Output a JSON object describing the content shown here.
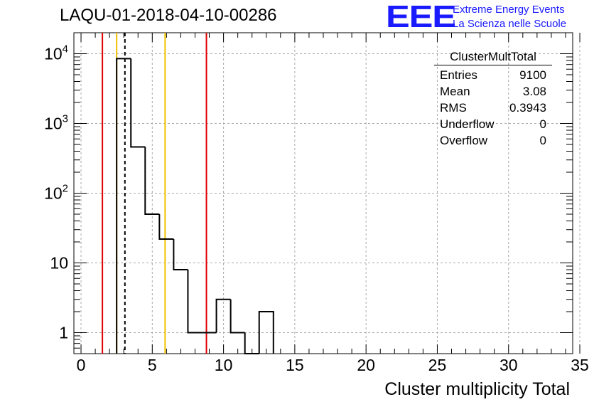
{
  "header": {
    "title": "LAQU-01-2018-04-10-00286",
    "logo_text": "EEE",
    "logo_line1": "Extreme Energy Events",
    "logo_line2": "La Scienza nelle Scuole"
  },
  "stats_box": {
    "name": "ClusterMultTotal",
    "rows": [
      {
        "label": "Entries",
        "value": "9100"
      },
      {
        "label": "Mean",
        "value": "3.08"
      },
      {
        "label": "RMS",
        "value": "0.3943"
      },
      {
        "label": "Underflow",
        "value": "0"
      },
      {
        "label": "Overflow",
        "value": "0"
      }
    ]
  },
  "chart_data": {
    "type": "bar",
    "histogram": "step",
    "title": "LAQU-01-2018-04-10-00286",
    "xlabel": "Cluster multiplicity Total",
    "ylabel": "",
    "xlim": [
      -0.5,
      34.5
    ],
    "ylim": [
      0.5,
      20000
    ],
    "y_scale": "log",
    "grid": true,
    "x_ticks": [
      "0",
      "5",
      "10",
      "15",
      "20",
      "25",
      "30",
      "35"
    ],
    "y_ticks": [
      "1",
      "10",
      "10^2",
      "10^3",
      "10^4"
    ],
    "bins": [
      {
        "x0": 2.5,
        "x1": 3.5,
        "count": 8500
      },
      {
        "x0": 3.5,
        "x1": 4.5,
        "count": 460
      },
      {
        "x0": 4.5,
        "x1": 5.5,
        "count": 50
      },
      {
        "x0": 5.5,
        "x1": 6.5,
        "count": 22
      },
      {
        "x0": 6.5,
        "x1": 7.5,
        "count": 8
      },
      {
        "x0": 7.5,
        "x1": 8.5,
        "count": 1
      },
      {
        "x0": 8.5,
        "x1": 9.5,
        "count": 1
      },
      {
        "x0": 9.5,
        "x1": 10.5,
        "count": 3
      },
      {
        "x0": 10.5,
        "x1": 11.5,
        "count": 1
      },
      {
        "x0": 11.5,
        "x1": 12.5,
        "count": 0
      },
      {
        "x0": 12.5,
        "x1": 13.5,
        "count": 2
      }
    ],
    "vertical_lines": [
      {
        "x": 1.5,
        "color": "#e00000",
        "style": "solid"
      },
      {
        "x": 2.5,
        "color": "#f0c000",
        "style": "solid"
      },
      {
        "x": 3.08,
        "color": "#000000",
        "style": "dashed"
      },
      {
        "x": 5.9,
        "color": "#f0c000",
        "style": "solid"
      },
      {
        "x": 8.8,
        "color": "#e00000",
        "style": "solid"
      }
    ]
  }
}
